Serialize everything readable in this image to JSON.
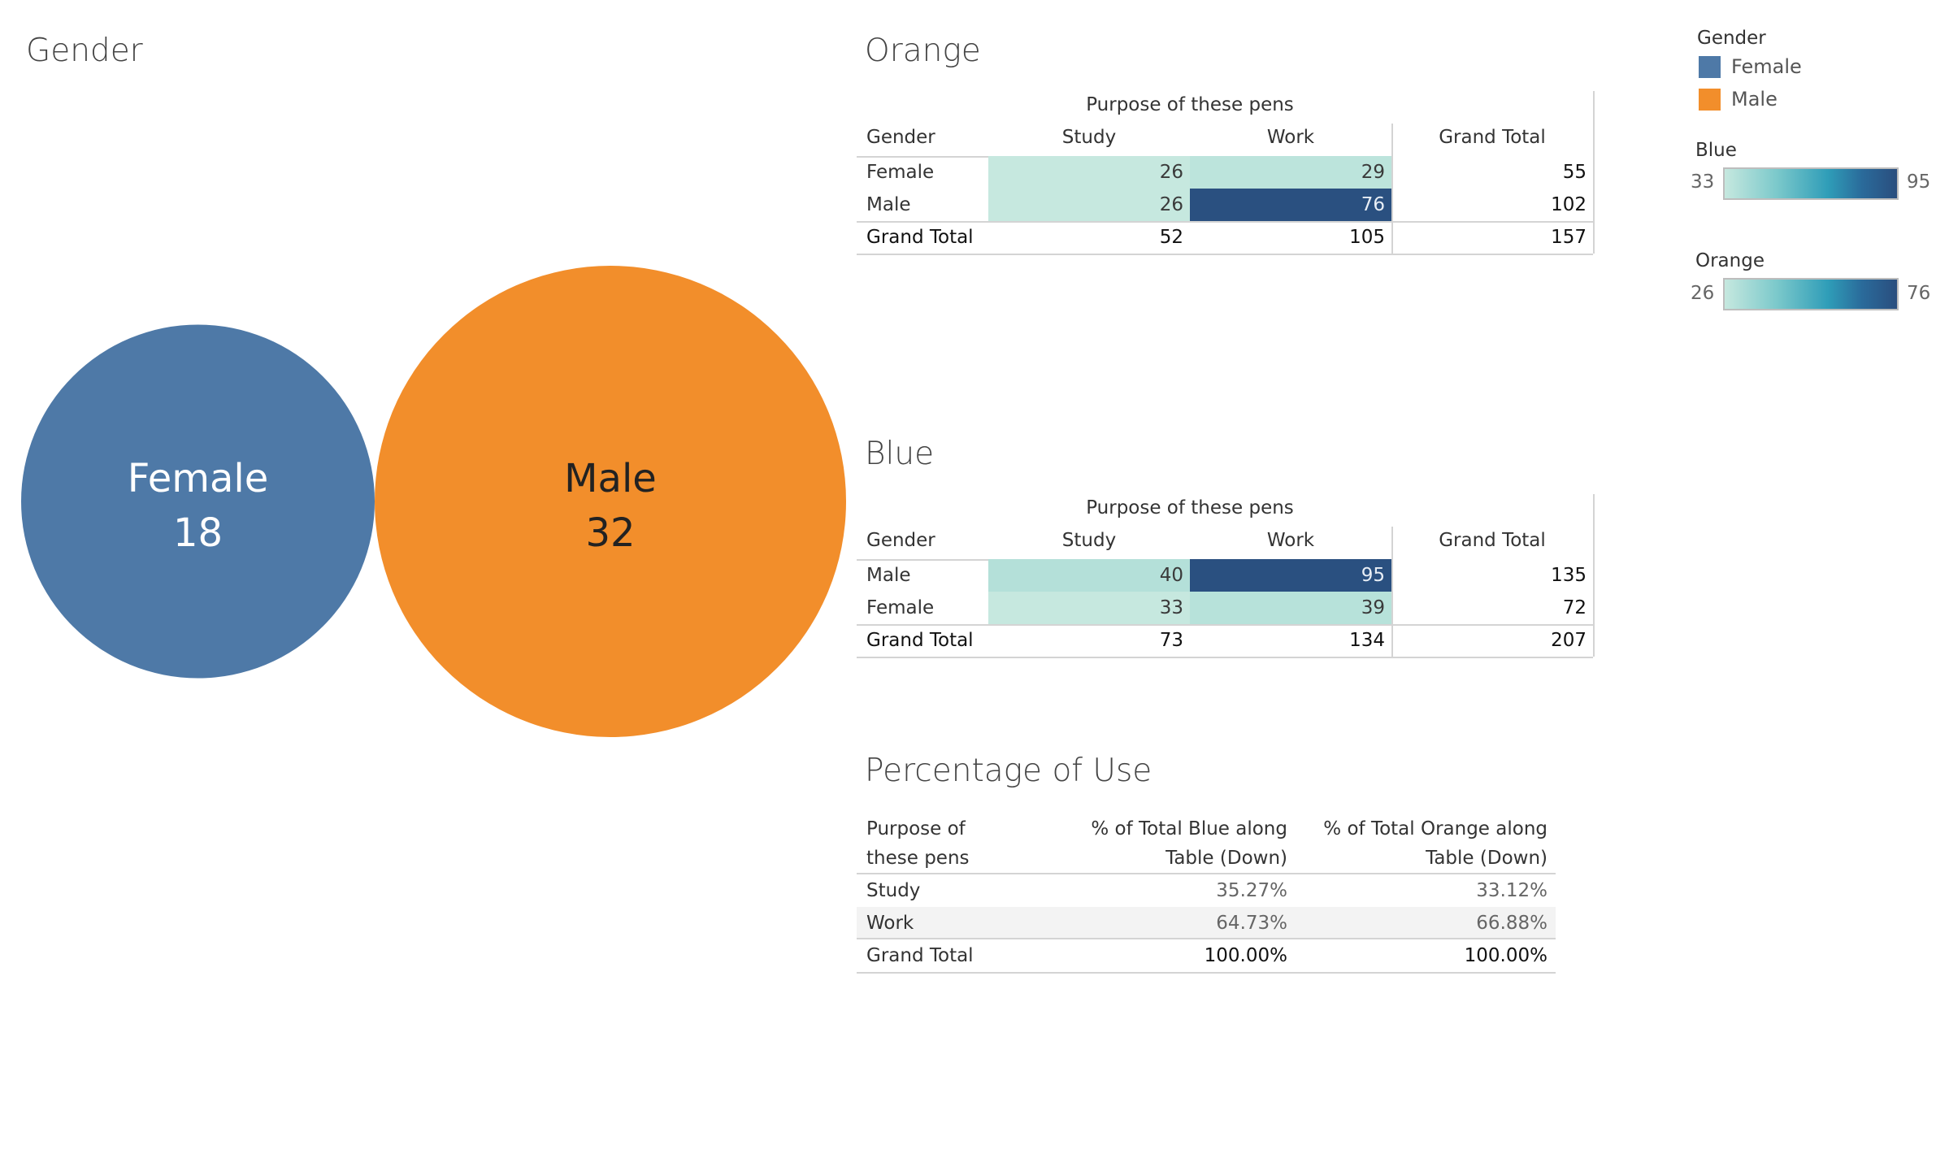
{
  "titles": {
    "gender": "Gender",
    "orange": "Orange",
    "blue": "Blue",
    "percentage": "Percentage of Use"
  },
  "colors": {
    "female": "#4e79a7",
    "male": "#f28e2b",
    "heat_low": "#c6e8df",
    "heat_high": "#2a4e7e"
  },
  "legends": {
    "gender_title": "Gender",
    "gender_items": [
      {
        "label": "Female",
        "color": "#4e79a7"
      },
      {
        "label": "Male",
        "color": "#f28e2b"
      }
    ],
    "blue": {
      "title": "Blue",
      "min": "33",
      "max": "95"
    },
    "orange": {
      "title": "Orange",
      "min": "26",
      "max": "76"
    }
  },
  "chart_data": [
    {
      "type": "bubble",
      "title": "Gender",
      "categories": [
        "Female",
        "Male"
      ],
      "values": [
        18,
        32
      ],
      "colors": [
        "#4e79a7",
        "#f28e2b"
      ]
    },
    {
      "type": "heatmap",
      "title": "Orange",
      "column_header": "Purpose of these pens",
      "row_header": "Gender",
      "columns": [
        "Study",
        "Work",
        "Grand Total"
      ],
      "rows": [
        {
          "label": "Female",
          "values": [
            26,
            29
          ],
          "total": 55
        },
        {
          "label": "Male",
          "values": [
            26,
            76
          ],
          "total": 102
        }
      ],
      "grand_total": {
        "label": "Grand Total",
        "values": [
          52,
          105
        ],
        "total": 157
      },
      "color_range": [
        26,
        76
      ]
    },
    {
      "type": "heatmap",
      "title": "Blue",
      "column_header": "Purpose of these pens",
      "row_header": "Gender",
      "columns": [
        "Study",
        "Work",
        "Grand Total"
      ],
      "rows": [
        {
          "label": "Male",
          "values": [
            40,
            95
          ],
          "total": 135
        },
        {
          "label": "Female",
          "values": [
            33,
            39
          ],
          "total": 72
        }
      ],
      "grand_total": {
        "label": "Grand Total",
        "values": [
          73,
          134
        ],
        "total": 207
      },
      "color_range": [
        33,
        95
      ]
    },
    {
      "type": "table",
      "title": "Percentage of Use",
      "columns": [
        "Purpose of these pens",
        "% of Total Blue along Table (Down)",
        "% of Total Orange along Table (Down)"
      ],
      "header_lines": [
        [
          "Purpose of",
          "% of Total Blue along",
          "% of Total Orange along"
        ],
        [
          "these pens",
          "Table (Down)",
          "Table (Down)"
        ]
      ],
      "rows": [
        {
          "label": "Study",
          "blue": "35.27%",
          "orange": "33.12%"
        },
        {
          "label": "Work",
          "blue": "64.73%",
          "orange": "66.88%"
        },
        {
          "label": "Grand Total",
          "blue": "100.00%",
          "orange": "100.00%"
        }
      ]
    }
  ]
}
